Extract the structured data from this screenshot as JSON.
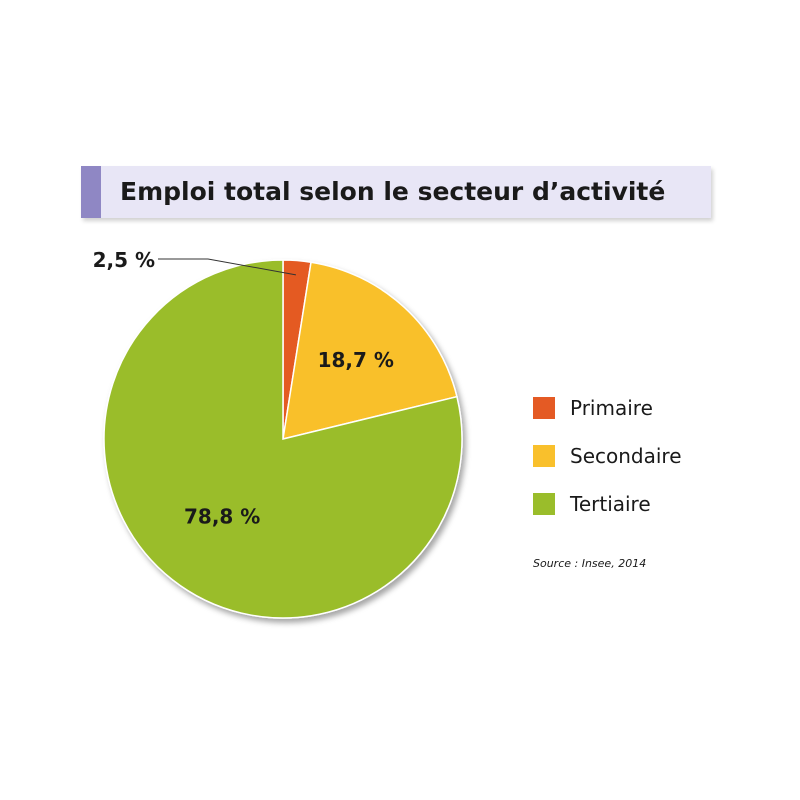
{
  "chart_data": {
    "type": "pie",
    "title": "Emploi total selon le secteur d’activité",
    "categories": [
      "Primaire",
      "Secondaire",
      "Tertiaire"
    ],
    "values": [
      2.5,
      18.7,
      78.8
    ],
    "data_labels": [
      "2,5 %",
      "18,7 %",
      "78,8 %"
    ],
    "colors": [
      "#e45a24",
      "#f9c02c",
      "#9abd2b"
    ],
    "legend_position": "right",
    "source": "Source : Insee, 2014"
  }
}
